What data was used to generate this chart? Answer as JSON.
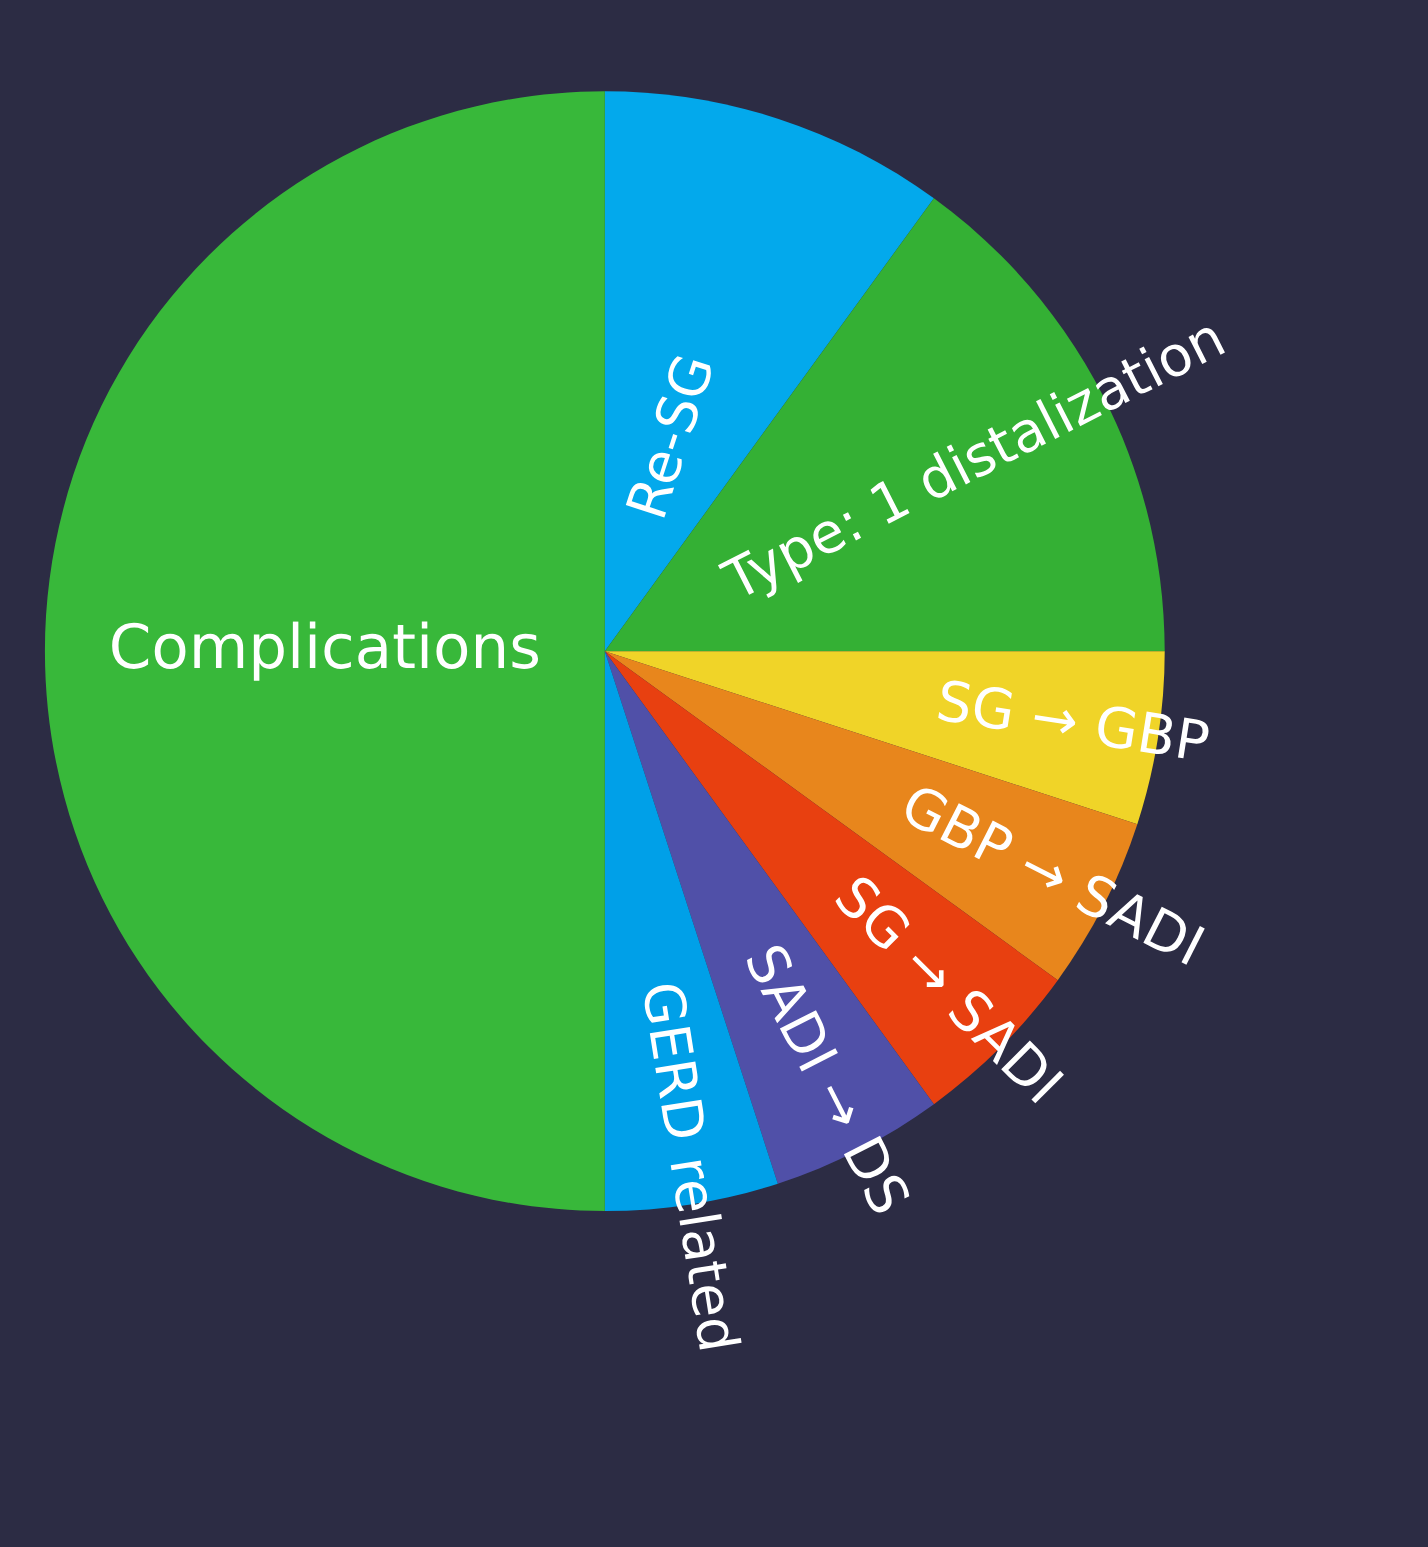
{
  "chart_data": {
    "type": "pie",
    "categories": [
      "Re-SG",
      "Type: 1 distalization",
      "SG → GBP",
      "GBP → SADI",
      "SG → SADI",
      "SADI → DS",
      "GERD related",
      "Complications"
    ],
    "values": [
      10,
      15,
      5,
      5,
      5,
      5,
      5,
      50
    ],
    "colors": [
      "#03a9ec",
      "#34b034",
      "#f0d428",
      "#e8861c",
      "#e84010",
      "#5050a8",
      "#00a0e8",
      "#38b83a"
    ]
  }
}
